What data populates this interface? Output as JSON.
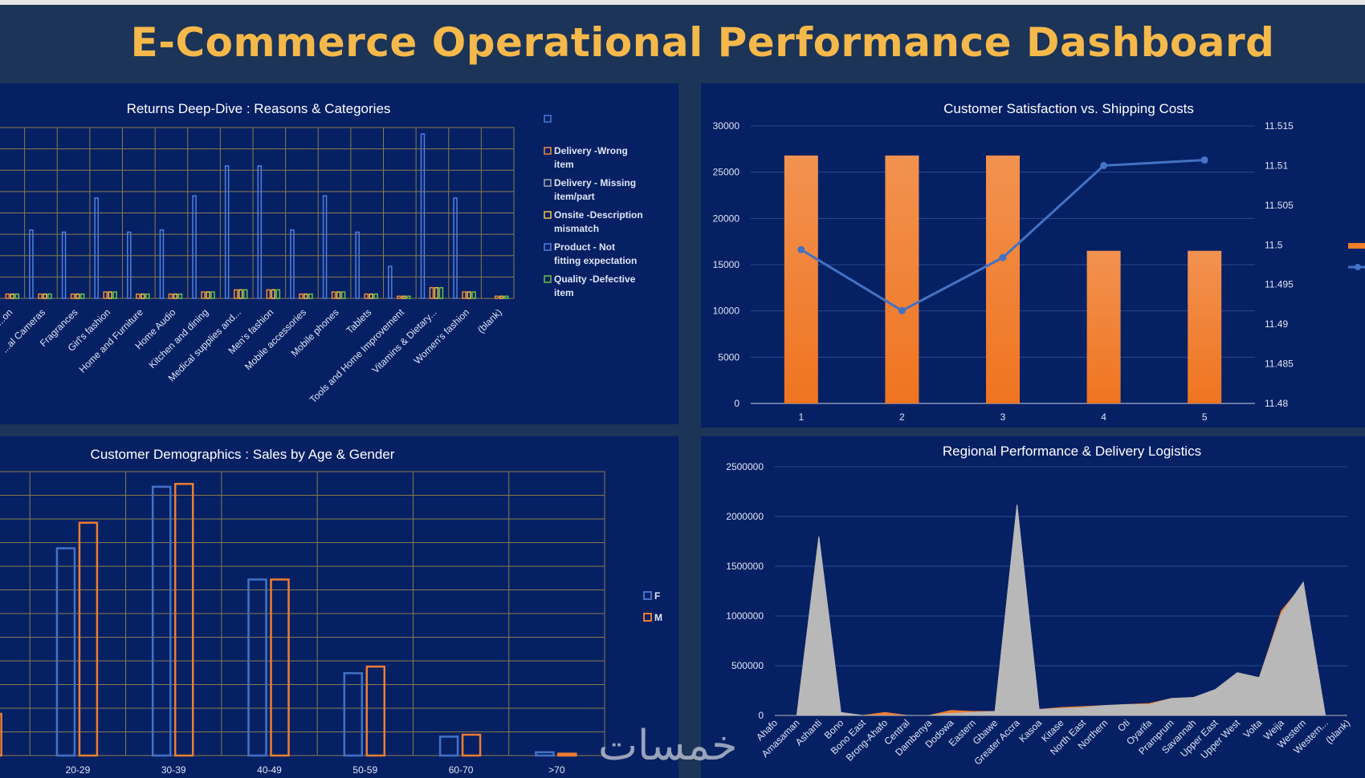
{
  "dashboard": {
    "title": "E-Commerce Operational Performance Dashboard",
    "watermark": "خمسات"
  },
  "chart_data": [
    {
      "id": "returns",
      "type": "bar",
      "title": "Returns Deep-Dive : Reasons & Categories",
      "categories": [
        "...on",
        "...al Cameras",
        "Fragrances",
        "Girl's fashion",
        "Home and Furniture",
        "Home Audio",
        "Kitchen and dining",
        "Medical supplies and...",
        "Men's fashion",
        "Mobile accessories",
        "Mobile phones",
        "Tablets",
        "Tools and Home Improvement",
        "Vitamins & Dietary...",
        "Women's fashion",
        "(blank)"
      ],
      "legend": [
        "",
        "Delivery -Wrong item",
        "Delivery - Missing item/part",
        "Onsite -Description mismatch",
        "Product - Not fitting expectation",
        "Quality -Defective item"
      ],
      "legend_position": "right",
      "colors": [
        "#4a78d8",
        "#f08a3a",
        "#a9a9a9",
        "#f5c242",
        "#4f7fe0",
        "#6bc24a"
      ],
      "series": [
        {
          "name": "Product - Not fitting expectation",
          "values": [
            0,
            32,
            31,
            47,
            31,
            32,
            48,
            62,
            62,
            32,
            48,
            31,
            15,
            77,
            47,
            0
          ]
        },
        {
          "name": "Delivery -Wrong item",
          "values": [
            2,
            2,
            2,
            3,
            2,
            2,
            3,
            4,
            4,
            2,
            3,
            2,
            1,
            5,
            3,
            1
          ]
        },
        {
          "name": "Onsite -Description mismatch",
          "values": [
            2,
            2,
            2,
            3,
            2,
            2,
            3,
            4,
            4,
            2,
            3,
            2,
            1,
            5,
            3,
            1
          ]
        },
        {
          "name": "Quality -Defective item",
          "values": [
            2,
            2,
            2,
            3,
            2,
            2,
            3,
            4,
            4,
            2,
            3,
            2,
            1,
            5,
            3,
            1
          ]
        }
      ],
      "ylim": [
        0,
        80
      ],
      "grid": true
    },
    {
      "id": "satisfaction",
      "type": "bar+line",
      "title": "Customer Satisfaction vs. Shipping Costs",
      "categories": [
        "1",
        "2",
        "3",
        "4",
        "5"
      ],
      "bar_values": [
        26800,
        26800,
        26800,
        16500,
        16500
      ],
      "line_values": [
        11.4994,
        11.4917,
        11.4984,
        11.51,
        11.5107
      ],
      "y_ticks": [
        "0",
        "5000",
        "10000",
        "15000",
        "20000",
        "25000",
        "30000"
      ],
      "y2_ticks": [
        "11.48",
        "11.485",
        "11.49",
        "11.495",
        "11.5",
        "11.505",
        "11.51",
        "11.515"
      ],
      "ylim": [
        0,
        30000
      ],
      "y2lim": [
        11.48,
        11.515
      ],
      "bar_color": "#f07f2a",
      "line_color": "#4472c4",
      "grid": true
    },
    {
      "id": "demographics",
      "type": "bar",
      "title": "Customer Demographics : Sales by Age & Gender",
      "categories": [
        "",
        "20-29",
        "30-39",
        "40-49",
        "50-59",
        "60-70",
        ">70"
      ],
      "series": [
        {
          "name": "F",
          "values": [
            0,
            2190,
            2840,
            1860,
            870,
            200,
            35
          ]
        },
        {
          "name": "M",
          "values": [
            440,
            2460,
            2870,
            1860,
            940,
            220,
            20
          ]
        }
      ],
      "ylim": [
        0,
        3000
      ],
      "legend_position": "right",
      "colors": [
        "#4472c4",
        "#ed7d31"
      ],
      "grid": true
    },
    {
      "id": "regional",
      "type": "area",
      "title": "Regional Performance & Delivery Logistics",
      "categories": [
        "Ahafo",
        "Amasaman",
        "Ashanti",
        "Bono",
        "Bono East",
        "Brong-Ahafo",
        "Central",
        "Dambenya",
        "Dodowa",
        "Eastern",
        "Gbawe",
        "Greater Accra",
        "Kasoa",
        "Kitase",
        "North East",
        "Northern",
        "Oti",
        "Oyarifa",
        "Pramprum",
        "Savannah",
        "Upper East",
        "Upper West",
        "Volta",
        "Weija",
        "Western",
        "Western...",
        "(blank)"
      ],
      "series": [
        {
          "name": "",
          "values": [
            0,
            0,
            1780000,
            20000,
            0,
            30000,
            0,
            0,
            50000,
            40000,
            40000,
            2100000,
            60000,
            80000,
            90000,
            100000,
            110000,
            120000,
            170000,
            180000,
            250000,
            420000,
            380000,
            1050000,
            1320000,
            0,
            0
          ],
          "color": "#ed7d31"
        },
        {
          "name": "",
          "values": [
            0,
            0,
            1800000,
            30000,
            0,
            0,
            0,
            0,
            20000,
            30000,
            40000,
            2120000,
            60000,
            70000,
            80000,
            100000,
            110000,
            110000,
            170000,
            180000,
            260000,
            430000,
            380000,
            1020000,
            1340000,
            0,
            0
          ],
          "color": "#b8b8b8"
        }
      ],
      "y_ticks": [
        "0",
        "500000",
        "1000000",
        "1500000",
        "2000000",
        "2500000"
      ],
      "ylim": [
        0,
        2500000
      ]
    }
  ]
}
